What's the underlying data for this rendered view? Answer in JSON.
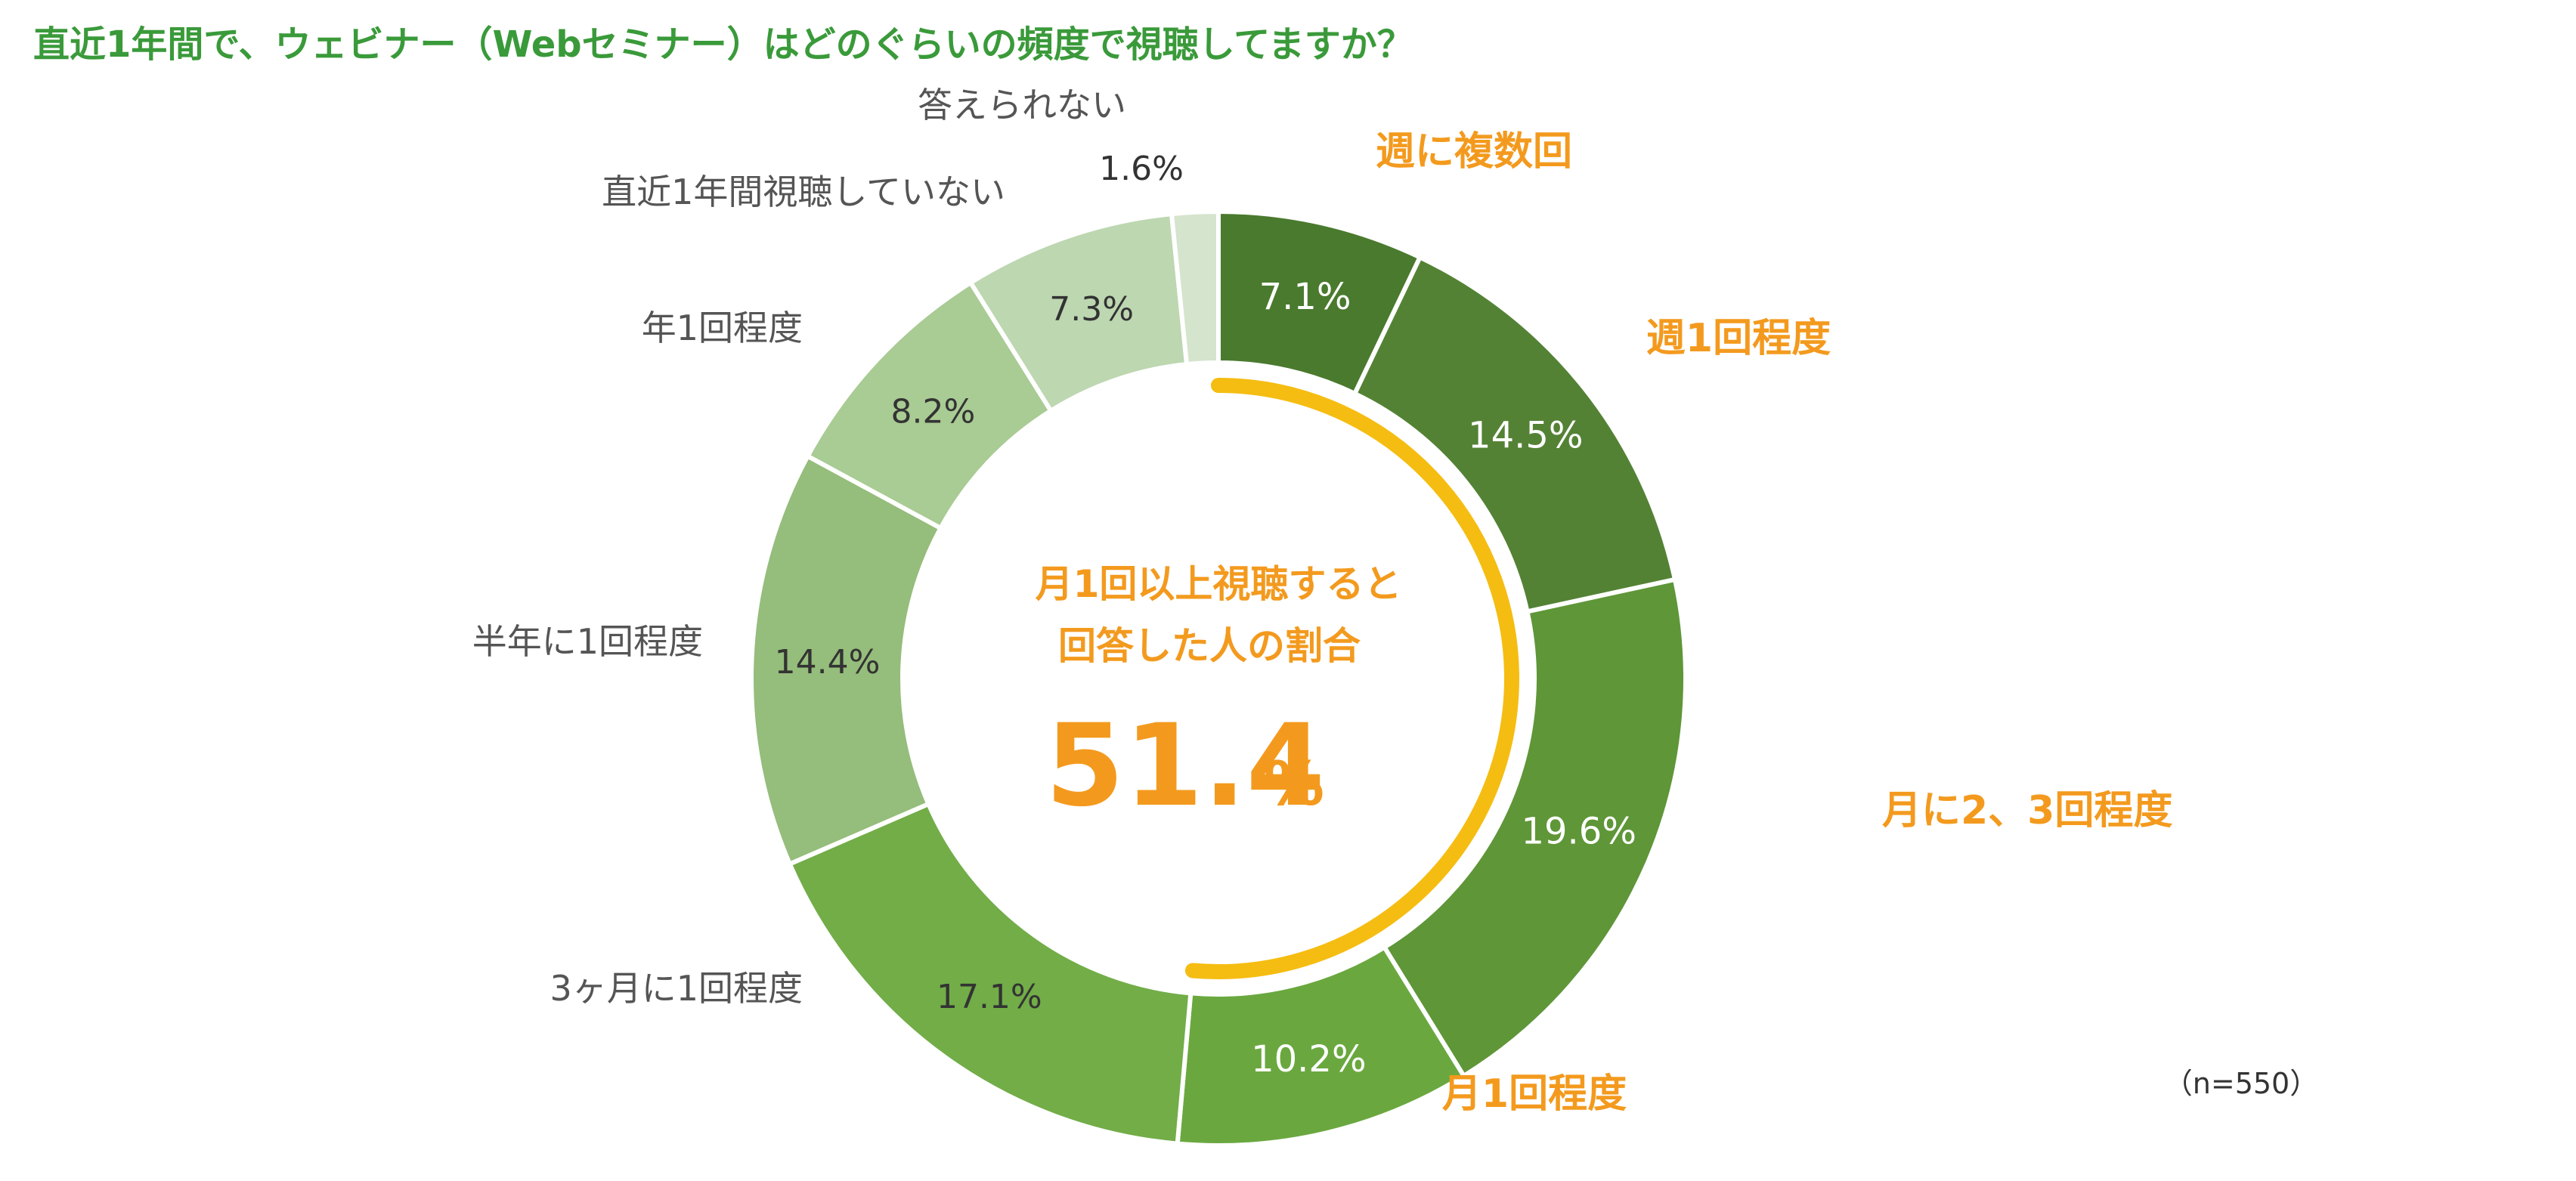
{
  "title": "直近1年間で、ウェビナー（Webセミナー）はどのぐらいの頻度で視聴してますか？",
  "sample_note": "（n=550）",
  "center": {
    "line1": "月1回以上視聴すると",
    "line2": "回答した人の割合",
    "value": "51.4",
    "unit": "%"
  },
  "colors": {
    "title": "#3a9a3a",
    "highlight": "#f39a1e",
    "arc": "#f5bd12",
    "outer_label_gray": "#555555"
  },
  "chart_data": {
    "type": "pie",
    "donut": true,
    "start": "top, clockwise",
    "categories": [
      "週に複数回",
      "週1回程度",
      "月に2、3回程度",
      "月1回程度",
      "3ヶ月に1回程度",
      "半年に1回程度",
      "年1回程度",
      "直近1年間視聴していない",
      "答えられない"
    ],
    "values": [
      7.1,
      14.5,
      19.6,
      10.2,
      17.1,
      14.4,
      8.2,
      7.3,
      1.6
    ],
    "value_labels": [
      "7.1%",
      "14.5%",
      "19.6%",
      "10.2%",
      "17.1%",
      "14.4%",
      "8.2%",
      "7.3%",
      "1.6%"
    ],
    "colors": [
      "#4a7a2e",
      "#548235",
      "#5f9638",
      "#6aa83f",
      "#72ad48",
      "#95bd7b",
      "#a9cb94",
      "#bdd7b1",
      "#d5e4cd"
    ],
    "value_label_colors": [
      "#ffffff",
      "#ffffff",
      "#ffffff",
      "#ffffff",
      "#333333",
      "#333333",
      "#333333",
      "#333333",
      "#333333"
    ],
    "category_label_style": [
      "highlight",
      "highlight",
      "highlight",
      "highlight",
      "gray",
      "gray",
      "gray",
      "gray",
      "gray"
    ],
    "highlight_total": 51.4
  }
}
